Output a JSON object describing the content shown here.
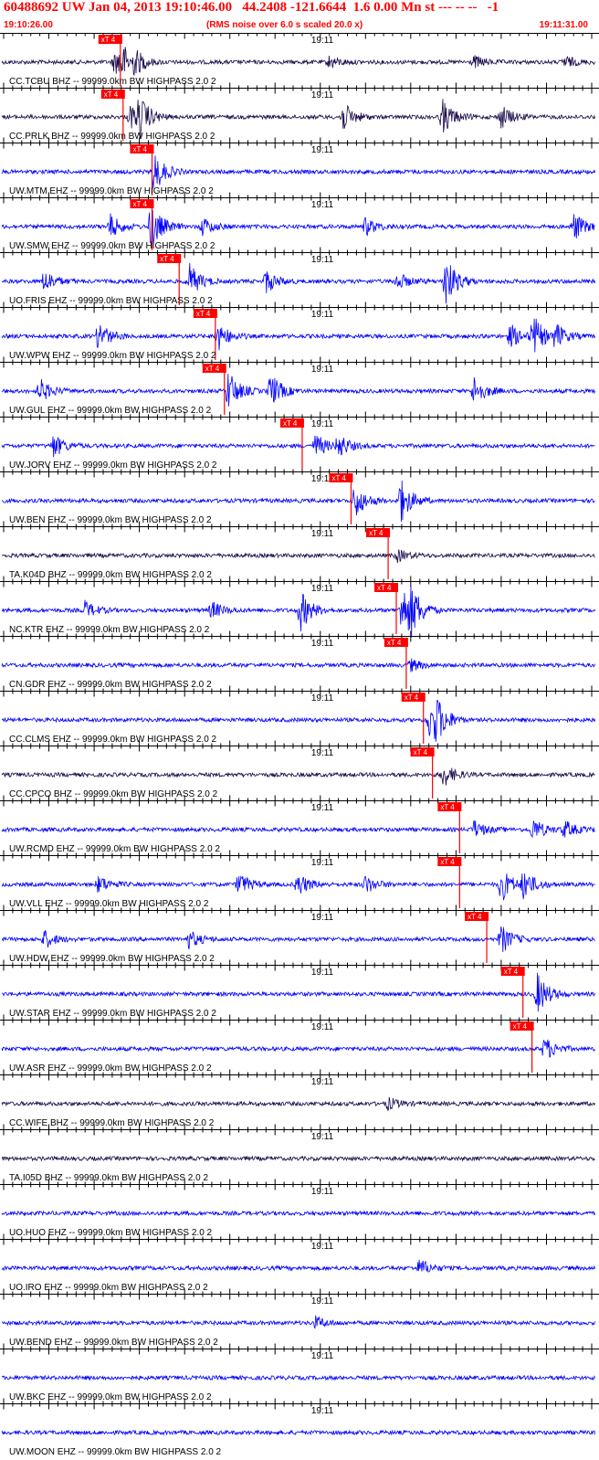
{
  "header": {
    "title": "60488692 UW Jan 04, 2013 19:10:46.00   44.2408 -121.6644  1.6 0.00 Mn st --- -- --   -1",
    "start_time": "19:10:26.00",
    "noise_note": "(RMS noise over 6.0 s scaled 20.0 x)",
    "end_time": "19:11:31.00"
  },
  "colors": {
    "header_text": "#ff0000",
    "trace_blue": "#0000ff",
    "trace_dark": "#1a0a4a",
    "pick_box": "#ff0000",
    "axis": "#000000"
  },
  "chart_data": {
    "type": "line",
    "title": "",
    "x_range_seconds_after_start": [
      0,
      65
    ],
    "minute_tick_label": "19:11",
    "minute_tick_seconds_after_start": 34,
    "pick_label": "xT 4",
    "traces": [
      {
        "label": "CC.TCBU BHZ -- 99999.0km BW  HIGHPASS  2.0  2",
        "color": "dark",
        "pick": 12.9,
        "events": [
          [
            12.3,
            4
          ],
          [
            13.0,
            5
          ],
          [
            14.5,
            3
          ],
          [
            36.0,
            2
          ],
          [
            52.0,
            2
          ],
          [
            62.0,
            2
          ]
        ]
      },
      {
        "label": "CC.PRLK BHZ -- 99999.0km BW  HIGHPASS  2.0  2",
        "color": "dark",
        "pick": 13.2,
        "events": [
          [
            14.0,
            4
          ],
          [
            15.0,
            6
          ],
          [
            37.5,
            5
          ],
          [
            48.5,
            6
          ],
          [
            55.0,
            4
          ]
        ]
      },
      {
        "label": "UW.MTM EHZ -- 99999.0km BW  HIGHPASS  2.0  2",
        "color": "blue",
        "pick": 16.4,
        "events": [
          [
            16.6,
            7
          ]
        ]
      },
      {
        "label": "UW.SMW EHZ -- 99999.0km BW  HIGHPASS  2.0  2",
        "color": "blue",
        "pick": 16.4,
        "events": [
          [
            11.8,
            4
          ],
          [
            16.3,
            8
          ],
          [
            22.0,
            3
          ],
          [
            40.0,
            3
          ],
          [
            63.0,
            5
          ]
        ]
      },
      {
        "label": "UO.FRIS EHZ -- 99999.0km BW  HIGHPASS  2.0  2",
        "color": "blue",
        "pick": 19.4,
        "events": [
          [
            4.5,
            4
          ],
          [
            20.5,
            6
          ],
          [
            29.0,
            4
          ],
          [
            43.5,
            3
          ],
          [
            48.8,
            9
          ]
        ]
      },
      {
        "label": "UW.WPW EHZ -- 99999.0km BW  HIGHPASS  2.0  2",
        "color": "blue",
        "pick": 23.4,
        "events": [
          [
            10.5,
            5
          ],
          [
            23.6,
            5
          ],
          [
            56.0,
            4
          ],
          [
            58.5,
            7
          ],
          [
            61.0,
            4
          ]
        ]
      },
      {
        "label": "UW.GUL EHZ -- 99999.0km BW  HIGHPASS  2.0  2",
        "color": "blue",
        "pick": 24.4,
        "events": [
          [
            4.0,
            4
          ],
          [
            24.8,
            7
          ],
          [
            29.5,
            6
          ],
          [
            52.0,
            5
          ]
        ]
      },
      {
        "label": "UW.JORV EHZ -- 99999.0km BW  HIGHPASS  2.0  2",
        "color": "blue",
        "pick": 33.0,
        "events": [
          [
            5.5,
            4
          ],
          [
            34.5,
            4
          ],
          [
            37.0,
            4
          ]
        ]
      },
      {
        "label": "UW.BEN EHZ -- 99999.0km BW  HIGHPASS  2.0  2",
        "color": "blue",
        "pick": 38.4,
        "events": [
          [
            38.8,
            6
          ],
          [
            43.8,
            8
          ]
        ]
      },
      {
        "label": "TA.K04D BHZ -- 99999.0km BW  HIGHPASS  2.0  2",
        "color": "dark",
        "pick": 42.5,
        "events": [
          [
            43.5,
            2
          ]
        ]
      },
      {
        "label": "NC.KTR EHZ -- 99999.0km BW  HIGHPASS  2.0  2",
        "color": "blue",
        "pick": 43.4,
        "events": [
          [
            9.0,
            3
          ],
          [
            23.0,
            3
          ],
          [
            32.8,
            7
          ],
          [
            44.0,
            9
          ],
          [
            45.0,
            6
          ]
        ]
      },
      {
        "label": "CN.GDR EHZ -- 99999.0km BW  HIGHPASS  2.0  2",
        "color": "blue",
        "pick": 44.5,
        "events": [
          [
            45.0,
            2
          ]
        ]
      },
      {
        "label": "CC.CLMS EHZ -- 99999.0km BW  HIGHPASS  2.0  2",
        "color": "blue",
        "pick": 46.4,
        "events": [
          [
            47.0,
            6
          ],
          [
            47.8,
            6
          ]
        ]
      },
      {
        "label": "CC.CPCO BHZ -- 99999.0km BW  HIGHPASS  2.0  2",
        "color": "dark",
        "pick": 47.4,
        "events": [
          [
            48.6,
            4
          ]
        ]
      },
      {
        "label": "UW.RCMD EHZ -- 99999.0km BW  HIGHPASS  2.0  2",
        "color": "blue",
        "pick": 50.4,
        "events": [
          [
            52.0,
            3
          ],
          [
            58.5,
            4
          ],
          [
            62.0,
            3
          ]
        ]
      },
      {
        "label": "UW.VLL EHZ -- 99999.0km BW  HIGHPASS  2.0  2",
        "color": "blue",
        "pick": 50.4,
        "events": [
          [
            10.5,
            3
          ],
          [
            26.0,
            4
          ],
          [
            32.5,
            4
          ],
          [
            40.0,
            3
          ],
          [
            55.0,
            6
          ],
          [
            57.5,
            5
          ]
        ]
      },
      {
        "label": "UW.HDW EHZ -- 99999.0km BW  HIGHPASS  2.0  2",
        "color": "blue",
        "pick": 53.4,
        "events": [
          [
            4.5,
            3
          ],
          [
            20.5,
            3
          ],
          [
            55.0,
            5
          ]
        ]
      },
      {
        "label": "UW.STAR EHZ -- 99999.0km BW  HIGHPASS  2.0  2",
        "color": "blue",
        "pick": 57.4,
        "events": [
          [
            59.0,
            7
          ]
        ]
      },
      {
        "label": "UW.ASR EHZ -- 99999.0km BW  HIGHPASS  2.0  2",
        "color": "blue",
        "pick": 58.4,
        "events": [
          [
            59.8,
            4
          ]
        ]
      },
      {
        "label": "CC.WIFE BHZ -- 99999.0km BW  HIGHPASS  2.0  2",
        "color": "dark",
        "pick": null,
        "events": [
          [
            42.5,
            2
          ]
        ]
      },
      {
        "label": "TA.I05D BHZ -- 99999.0km BW  HIGHPASS  2.0  2",
        "color": "dark",
        "pick": null,
        "events": []
      },
      {
        "label": "UO.HUO EHZ -- 99999.0km BW  HIGHPASS  2.0  2",
        "color": "blue",
        "pick": null,
        "events": []
      },
      {
        "label": "UO.IRO EHZ -- 99999.0km BW  HIGHPASS  2.0  2",
        "color": "blue",
        "pick": null,
        "events": [
          [
            46.0,
            3
          ]
        ]
      },
      {
        "label": "UW.BEND EHZ -- 99999.0km BW  HIGHPASS  2.0  2",
        "color": "blue",
        "pick": null,
        "events": [
          [
            34.5,
            2
          ]
        ]
      },
      {
        "label": "UW.BKC EHZ -- 99999.0km BW  HIGHPASS  2.0  2",
        "color": "blue",
        "pick": null,
        "events": []
      },
      {
        "label": "UW.MOON EHZ -- 99999.0km BW  HIGHPASS  2.0  2",
        "color": "blue",
        "pick": null,
        "events": []
      }
    ]
  }
}
